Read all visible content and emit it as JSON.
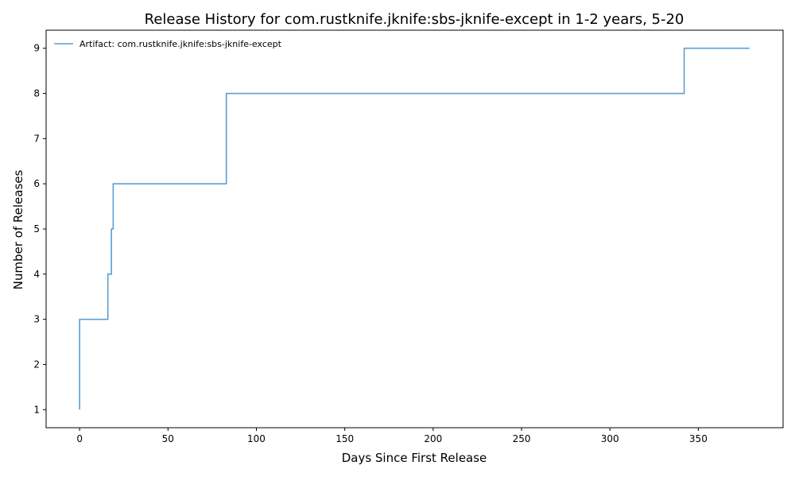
{
  "chart_data": {
    "type": "line",
    "step": "post",
    "title": "Release History for com.rustknife.jknife:sbs-jknife-except in 1-2 years, 5-20",
    "xlabel": "Days Since First Release",
    "ylabel": "Number of Releases",
    "xlim": [
      -18.95,
      397.95
    ],
    "ylim": [
      0.6,
      9.4
    ],
    "xticks": [
      0,
      50,
      100,
      150,
      200,
      250,
      300,
      350
    ],
    "yticks": [
      1,
      2,
      3,
      4,
      5,
      6,
      7,
      8,
      9
    ],
    "grid": false,
    "legend": {
      "position": "top-left",
      "frame": false
    },
    "series": [
      {
        "name": "Artifact: com.rustknife.jknife:sbs-jknife-except",
        "color": "#5a9fd4",
        "x": [
          0,
          0,
          0,
          16,
          18,
          19,
          83,
          342,
          379
        ],
        "y": [
          1,
          2,
          3,
          4,
          5,
          6,
          8,
          9,
          9
        ]
      }
    ]
  }
}
